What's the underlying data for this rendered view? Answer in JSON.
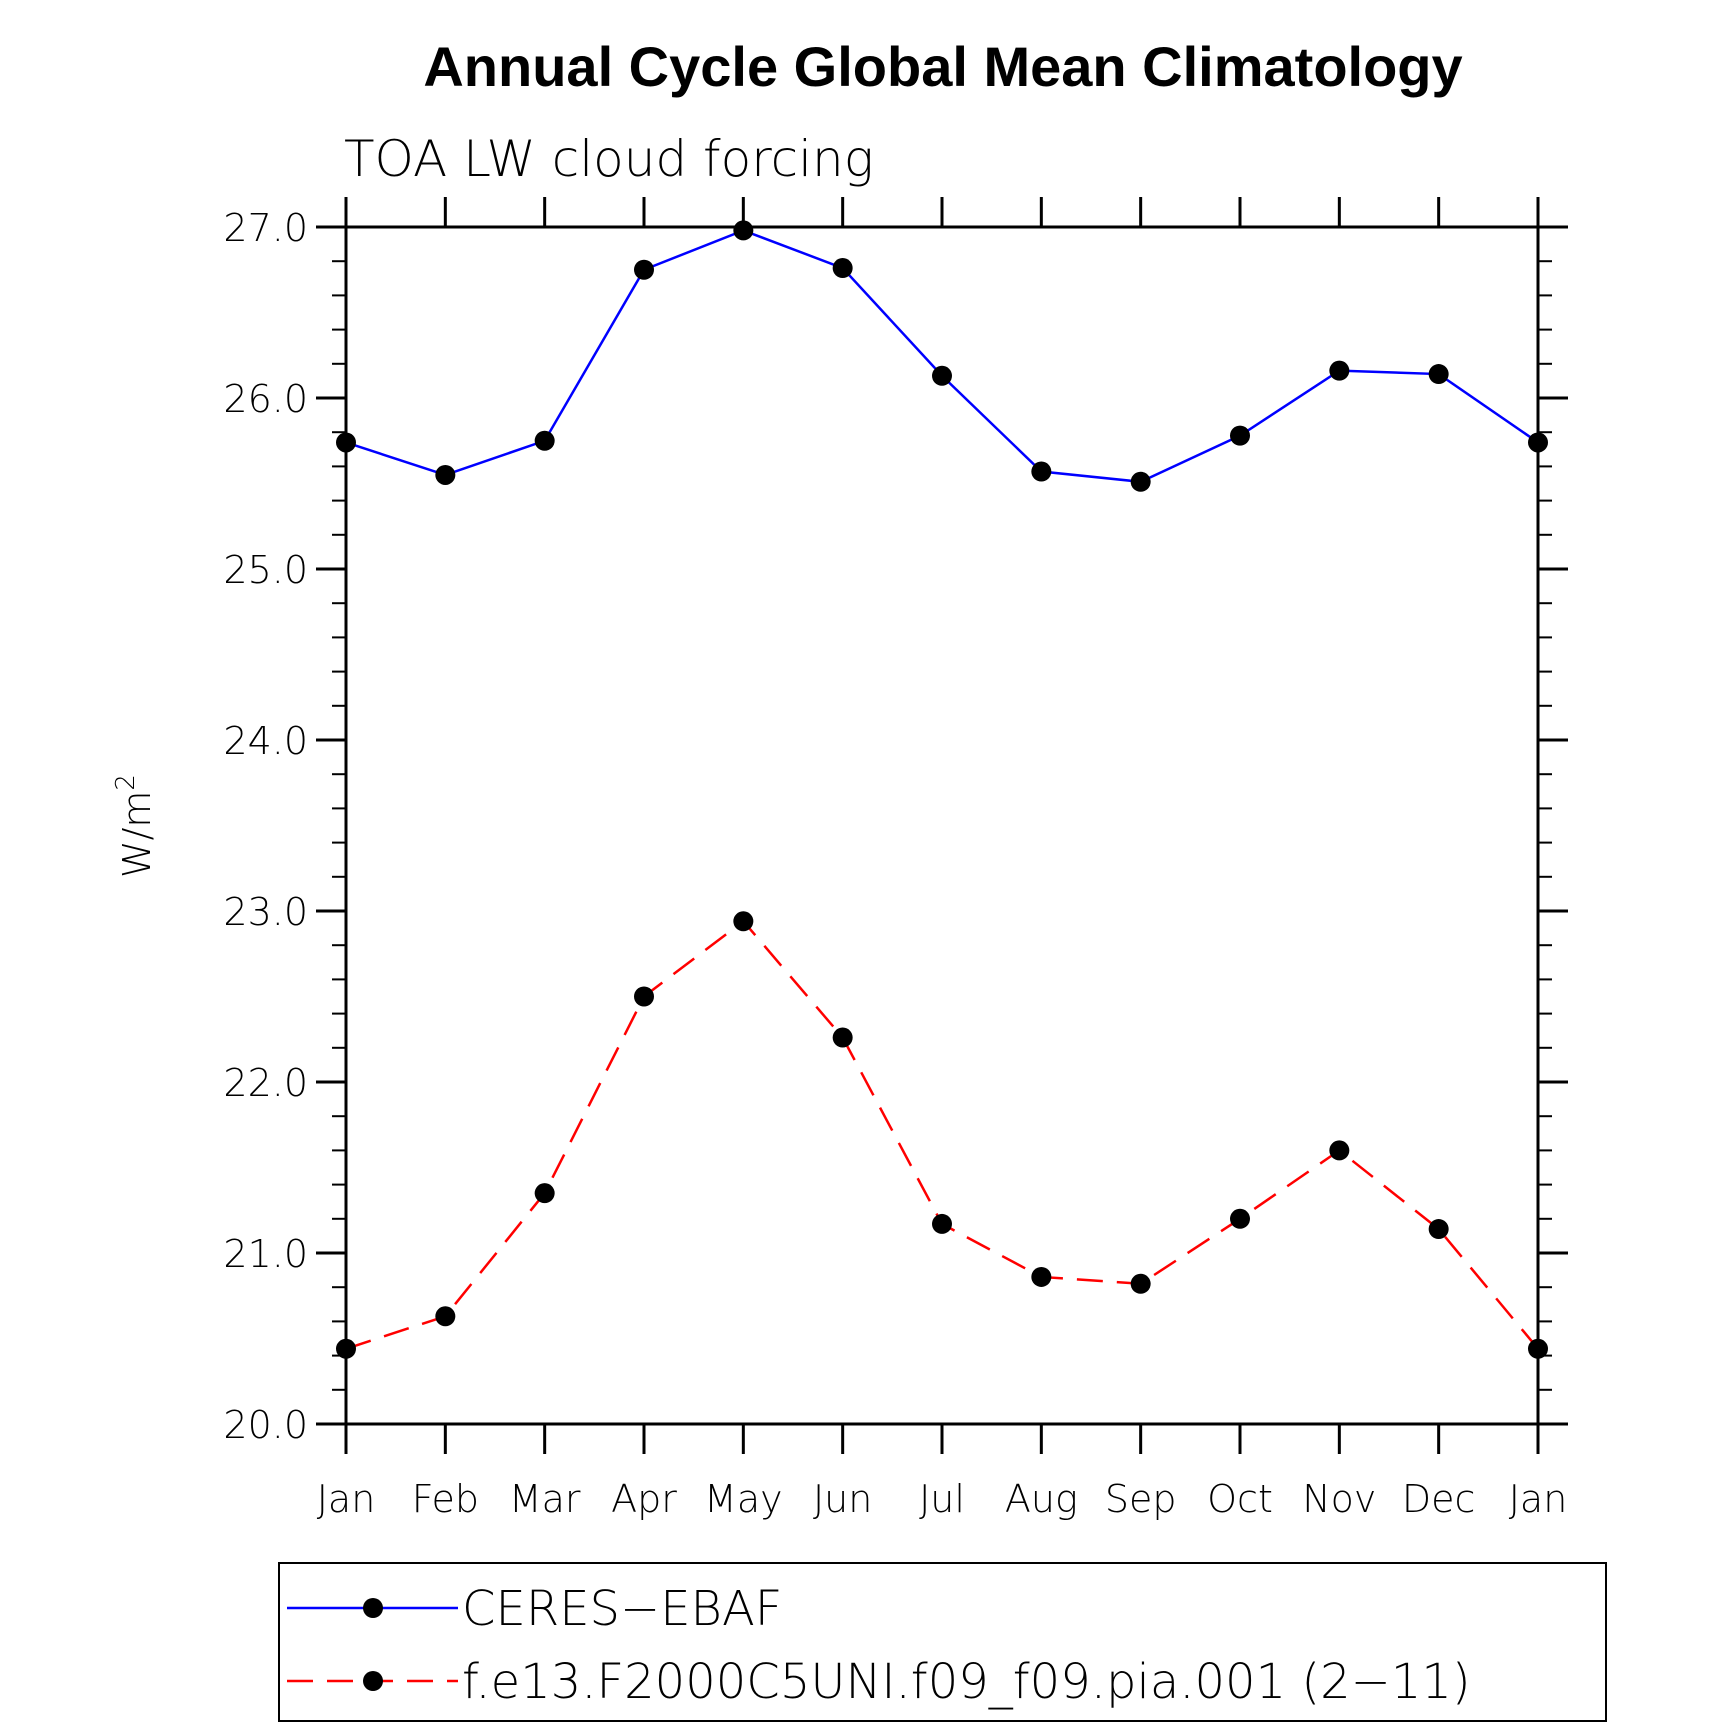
{
  "chart_data": {
    "type": "line",
    "title": "Annual Cycle Global Mean Climatology",
    "subtitle": "TOA LW cloud forcing",
    "xlabel": "",
    "ylabel": "W/m",
    "ylabel_superscript": "2",
    "ylim": [
      20.0,
      27.0
    ],
    "yticks": [
      "20.0",
      "21.0",
      "22.0",
      "23.0",
      "24.0",
      "25.0",
      "26.0",
      "27.0"
    ],
    "categories": [
      "Jan",
      "Feb",
      "Mar",
      "Apr",
      "May",
      "Jun",
      "Jul",
      "Aug",
      "Sep",
      "Oct",
      "Nov",
      "Dec",
      "Jan"
    ],
    "series": [
      {
        "name": "CERES−EBAF",
        "color": "#0000ff",
        "dash": "solid",
        "values": [
          25.74,
          25.55,
          25.75,
          26.75,
          26.98,
          26.76,
          26.13,
          25.57,
          25.51,
          25.78,
          26.16,
          26.14,
          25.74
        ]
      },
      {
        "name": "f.e13.F2000C5UNI.f09_f09.pia.001 (2−11)",
        "color": "#ff0000",
        "dash": "dashed",
        "values": [
          20.44,
          20.63,
          21.35,
          22.5,
          22.94,
          22.26,
          21.17,
          20.86,
          20.82,
          21.2,
          21.6,
          21.14,
          20.44
        ]
      }
    ],
    "marker_color": "#000000",
    "legend_position": "bottom"
  }
}
